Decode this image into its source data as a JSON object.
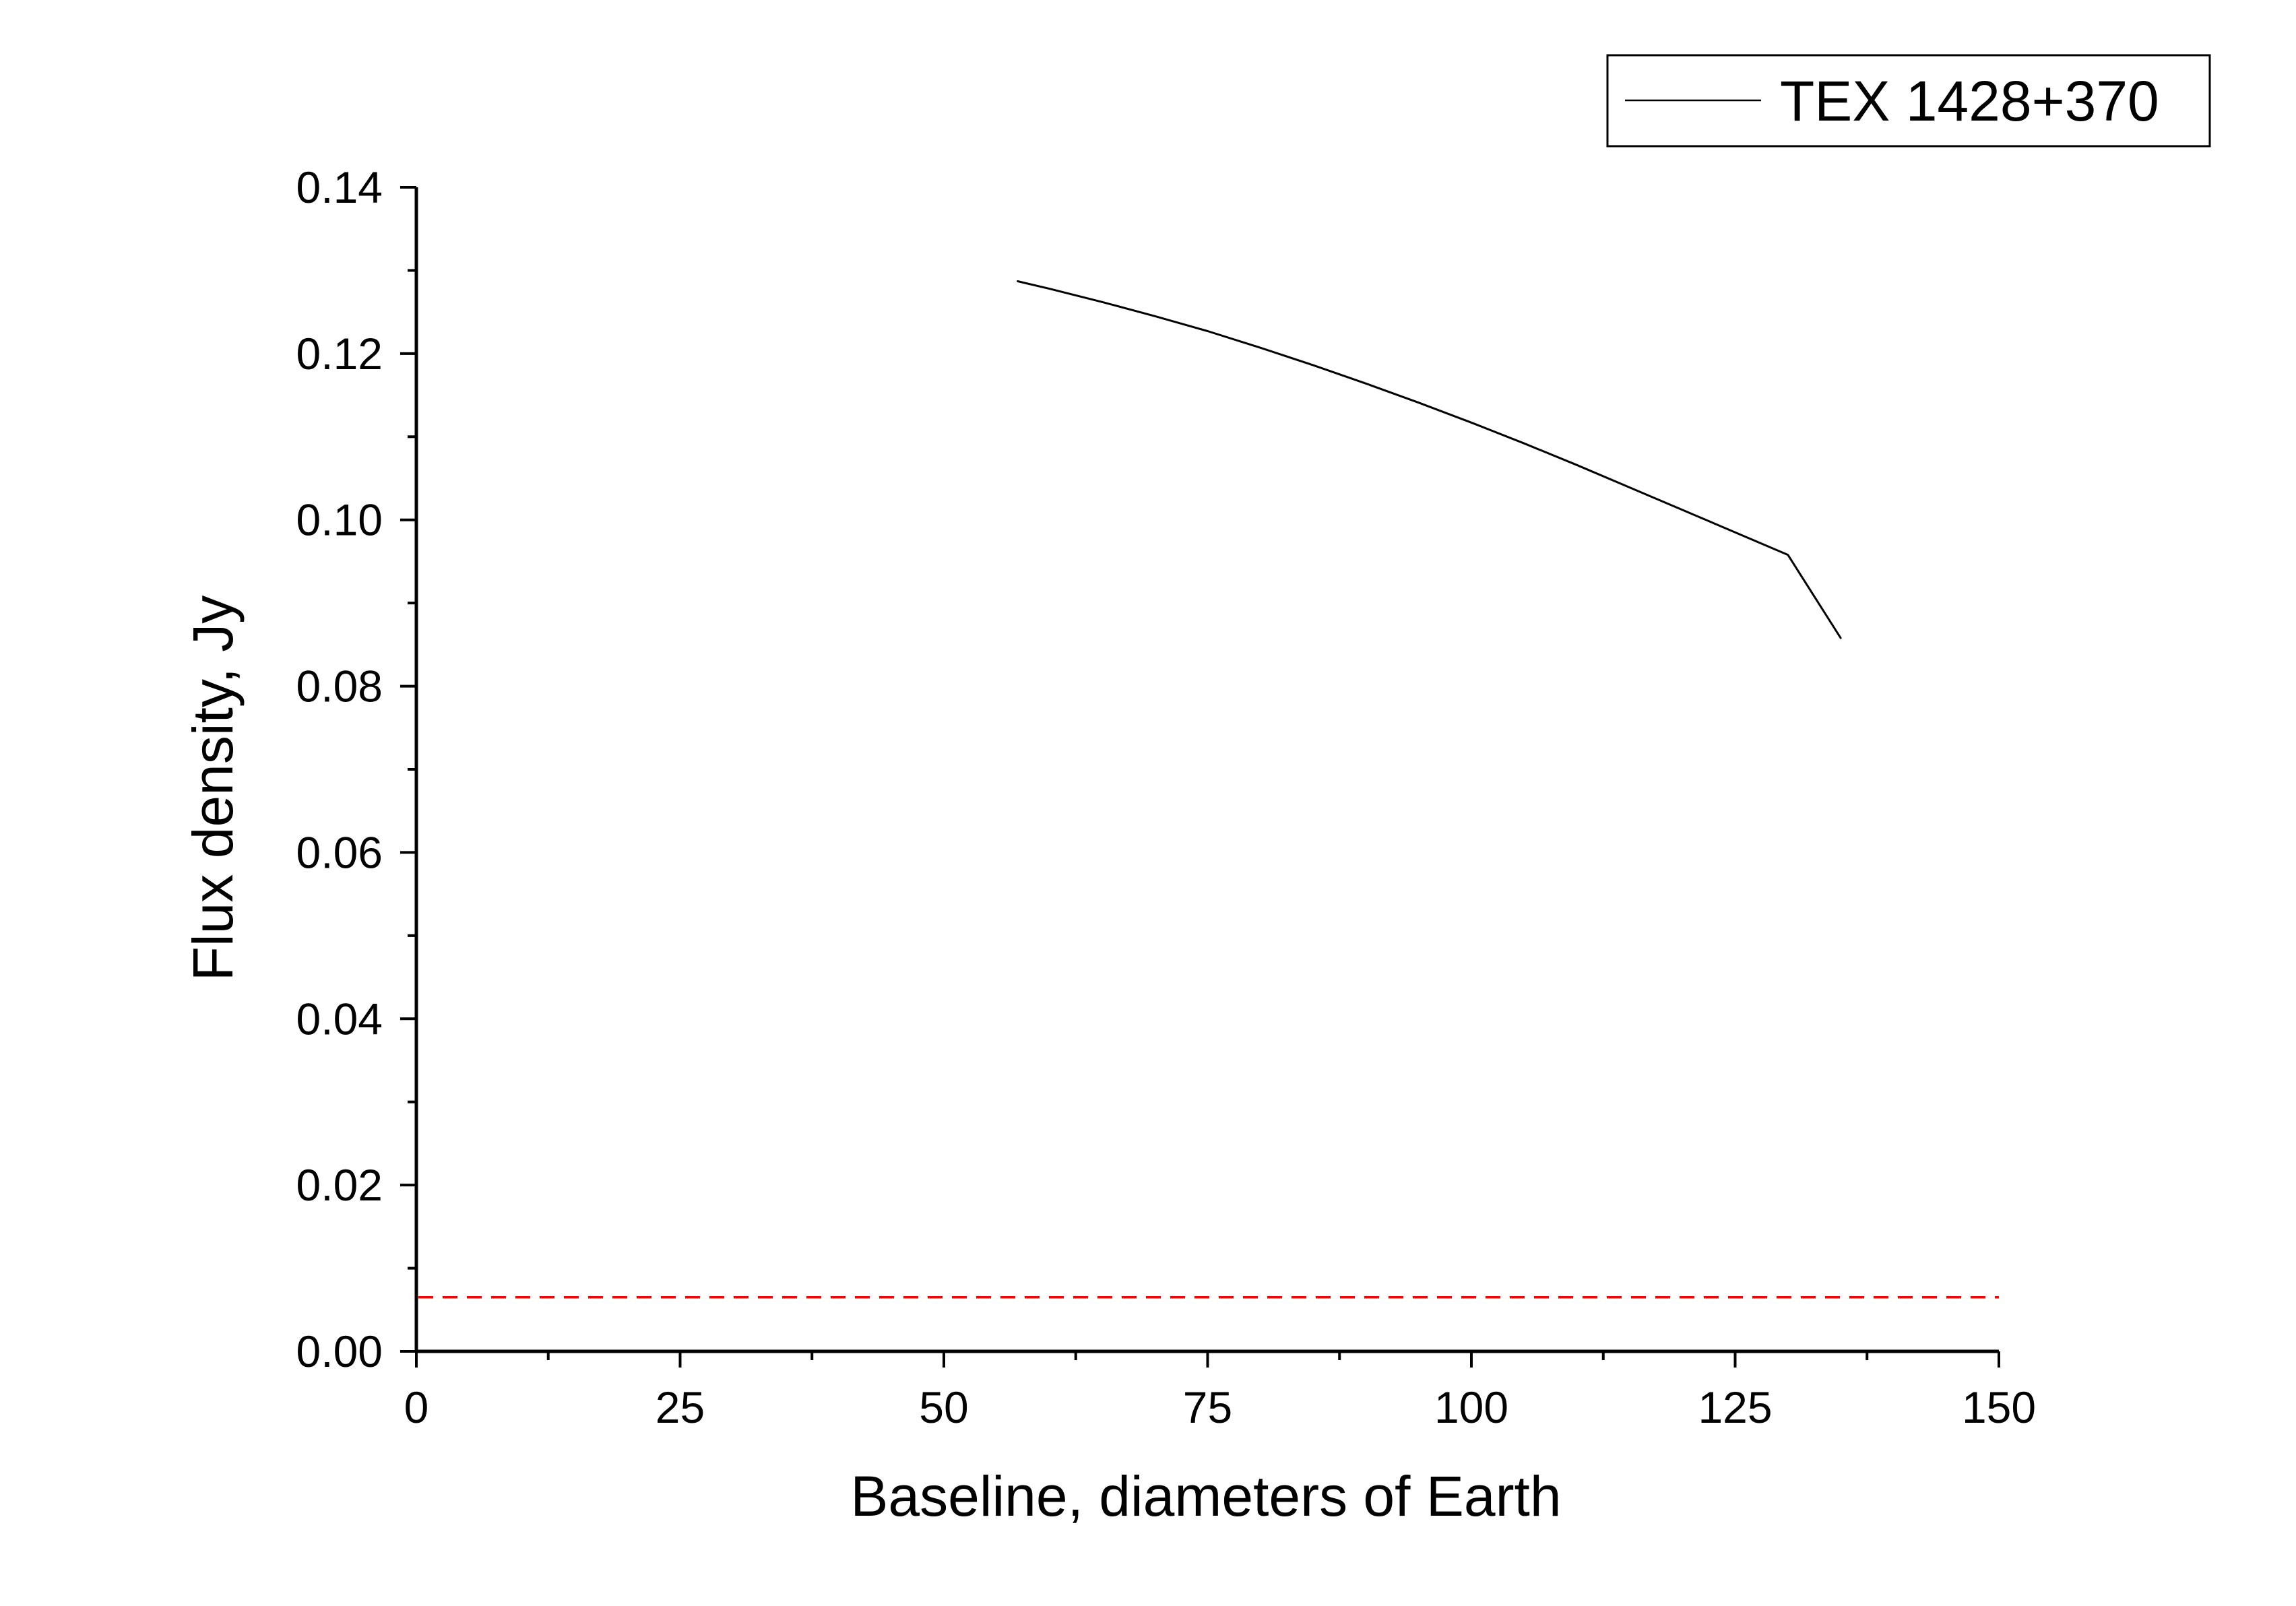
{
  "chart_data": {
    "type": "line",
    "title": "",
    "xlabel": "Baseline, diameters of Earth",
    "ylabel": "Flux density, Jy",
    "xlim": [
      0,
      150
    ],
    "ylim": [
      0,
      0.14
    ],
    "x_ticks": [
      0,
      25,
      50,
      75,
      100,
      125,
      150
    ],
    "x_tick_labels": [
      "0",
      "25",
      "50",
      "75",
      "100",
      "125",
      "150"
    ],
    "y_ticks": [
      0,
      0.02,
      0.04,
      0.06,
      0.08,
      0.1,
      0.12,
      0.14
    ],
    "y_tick_labels": [
      "0.00",
      "0.02",
      "0.04",
      "0.06",
      "0.08",
      "0.10",
      "0.12",
      "0.14"
    ],
    "grid": false,
    "legend": {
      "position": "top-right",
      "entries": [
        "TEX 1428+370"
      ]
    },
    "series": [
      {
        "name": "TEX 1428+370",
        "color": "#000000",
        "style": "solid",
        "x": [
          57,
          60,
          65,
          70,
          75,
          80,
          85,
          90,
          95,
          100,
          105,
          110,
          115,
          120,
          125,
          130,
          135
        ],
        "y": [
          0.1287,
          0.1278,
          0.1262,
          0.1245,
          0.1227,
          0.1207,
          0.1186,
          0.1164,
          0.1141,
          0.1117,
          0.1092,
          0.1066,
          0.1039,
          0.1012,
          0.0985,
          0.0958,
          0.0858
        ]
      }
    ],
    "reference_lines": [
      {
        "y": 0.0065,
        "color": "#ff0000",
        "style": "dashed"
      }
    ]
  }
}
